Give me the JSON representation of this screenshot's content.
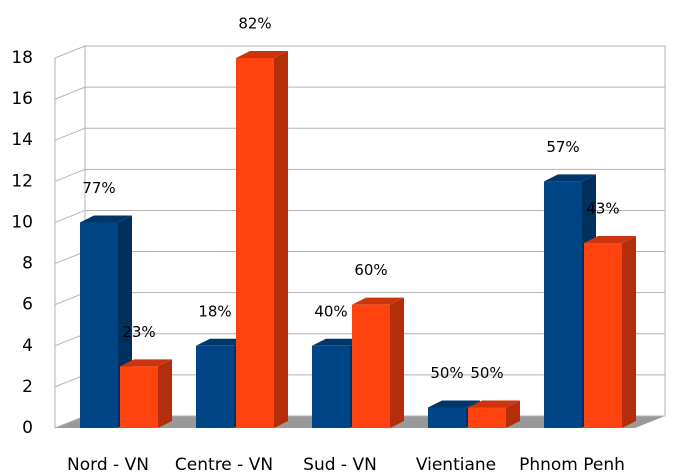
{
  "chart_data": {
    "type": "bar3d",
    "categories": [
      "Nord - VN",
      "Centre - VN",
      "Sud - VN",
      "Vientiane",
      "Phnom Penh"
    ],
    "series": [
      {
        "color": "#004586",
        "values": [
          10,
          4,
          4,
          1,
          12
        ],
        "data_labels": [
          "77%",
          "18%",
          "40%",
          "50%",
          "57%"
        ]
      },
      {
        "color": "#ff420e",
        "values": [
          3,
          18,
          6,
          1,
          9
        ],
        "data_labels": [
          "23%",
          "82%",
          "60%",
          "50%",
          "43%"
        ]
      }
    ],
    "ylim": [
      0,
      18
    ],
    "yticks": [
      0,
      2,
      4,
      6,
      8,
      10,
      12,
      14,
      16,
      18
    ],
    "grid": true
  }
}
